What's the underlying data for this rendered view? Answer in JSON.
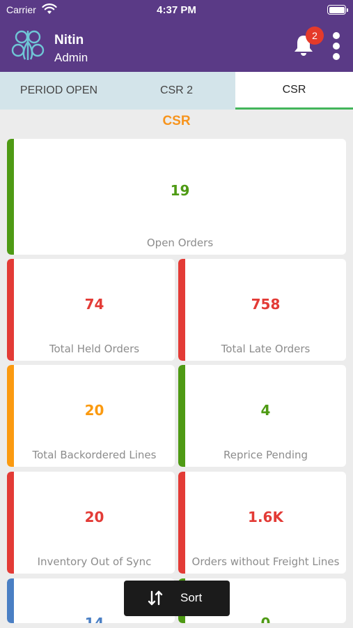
{
  "status_bar": {
    "carrier": "Carrier",
    "time": "4:37 PM"
  },
  "header": {
    "user_name": "Nitin",
    "user_role": "Admin",
    "notification_count": "2",
    "colors": {
      "background": "#5a3a86",
      "badge": "#e53a2a"
    }
  },
  "tabs": [
    {
      "label": "PERIOD OPEN",
      "active": false
    },
    {
      "label": "CSR 2",
      "active": false
    },
    {
      "label": "CSR",
      "active": true
    }
  ],
  "section_title": "CSR",
  "cards": [
    {
      "value": "19",
      "label": "Open Orders",
      "color": "#4e9a14"
    },
    {
      "value": "74",
      "label": "Total Held Orders",
      "color": "#e33b36"
    },
    {
      "value": "758",
      "label": "Total Late Orders",
      "color": "#e33b36"
    },
    {
      "value": "20",
      "label": "Total Backordered Lines",
      "color": "#fb9a10"
    },
    {
      "value": "4",
      "label": "Reprice Pending",
      "color": "#4e9a14"
    },
    {
      "value": "20",
      "label": "Inventory Out of Sync",
      "color": "#e33b36"
    },
    {
      "value": "1.6K",
      "label": "Orders without Freight Lines",
      "color": "#e33b36"
    },
    {
      "value": "14",
      "label": "",
      "color": "#4a7fc4"
    },
    {
      "value": "0",
      "label": "",
      "color": "#4e9a14"
    }
  ],
  "sort_button": {
    "label": "Sort",
    "icon": "sort-arrows-icon"
  }
}
